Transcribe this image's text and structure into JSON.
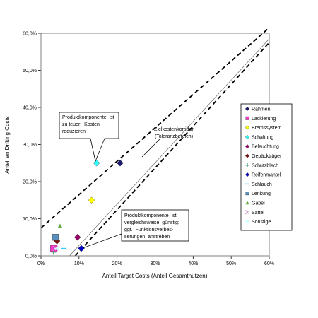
{
  "chart_data": {
    "type": "scatter",
    "xlabel": "Anteil Target Costs (Anteil Gesamtnutzen)",
    "ylabel": "Anteil an Drfiting Costs",
    "xlim": [
      0,
      60
    ],
    "ylim": [
      0,
      60
    ],
    "x_ticks": [
      "0%",
      "10%",
      "20%",
      "30%",
      "40%",
      "50%",
      "60%"
    ],
    "y_ticks": [
      "0,0%",
      "10,0%",
      "20,0%",
      "30,0%",
      "40,0%",
      "50,0%",
      "60,0%"
    ],
    "grid": false,
    "legend_position": "right",
    "series": [
      {
        "name": "Rahmen",
        "marker": "diamond",
        "color": "#1a1a6e",
        "x": 20.8,
        "y": 25.0
      },
      {
        "name": "Lackierung",
        "marker": "square",
        "color": "#ff33cc",
        "x": 3.3,
        "y": 2.0
      },
      {
        "name": "Bremssystem",
        "marker": "diamond",
        "color": "#ffff00",
        "x": 13.3,
        "y": 15.0
      },
      {
        "name": "Schaltung",
        "marker": "diamond",
        "color": "#33ffff",
        "x": 14.6,
        "y": 25.0
      },
      {
        "name": "Beleuchtung",
        "marker": "diamond",
        "color": "#990066",
        "x": 9.6,
        "y": 5.0
      },
      {
        "name": "Gepäckträger",
        "marker": "diamond",
        "color": "#801010",
        "x": 4.2,
        "y": 4.0
      },
      {
        "name": "Schutzblech",
        "marker": "plus",
        "color": "#339966",
        "x": 3.3,
        "y": 1.0
      },
      {
        "name": "Reifenmantel",
        "marker": "diamond",
        "color": "#0000cc",
        "x": 10.6,
        "y": 2.0
      },
      {
        "name": "Schlauch",
        "marker": "dash",
        "color": "#33ccff",
        "x": 6.0,
        "y": 2.0
      },
      {
        "name": "Lenkung",
        "marker": "square",
        "color": "#5b8fbe",
        "x": 3.8,
        "y": 5.0
      },
      {
        "name": "Gabel",
        "marker": "triangle",
        "color": "#66aa44",
        "x": 5.0,
        "y": 8.0
      },
      {
        "name": "Sattel",
        "marker": "x",
        "color": "#cc99cc",
        "x": 3.8,
        "y": 2.0
      },
      {
        "name": "Sonstige",
        "marker": "star",
        "color": "#ccffff",
        "x": 4.2,
        "y": 2.0
      }
    ],
    "lines": [
      {
        "style": "solid",
        "x": [
          7.5,
          60
        ],
        "y": [
          0,
          58.5
        ]
      },
      {
        "style": "dashed",
        "x": [
          0,
          60
        ],
        "y": [
          7.5,
          61.5
        ]
      },
      {
        "style": "dashed",
        "x": [
          9,
          60
        ],
        "y": [
          0,
          57.5
        ]
      }
    ],
    "annotations": [
      {
        "lines": [
          "Produktkomponente  ist",
          "zu teuer:  Kosten",
          "reduzieren"
        ],
        "boxed": true
      },
      {
        "lines": [
          "Zielkostenkorridor",
          "(Toleranzbereich)"
        ],
        "boxed": false
      },
      {
        "lines": [
          "Produktkomponente  ist",
          "vergleichsweise  günstig:",
          "ggf.  Funktionsverbes-",
          "serungen  anstreben"
        ],
        "boxed": true
      }
    ]
  }
}
